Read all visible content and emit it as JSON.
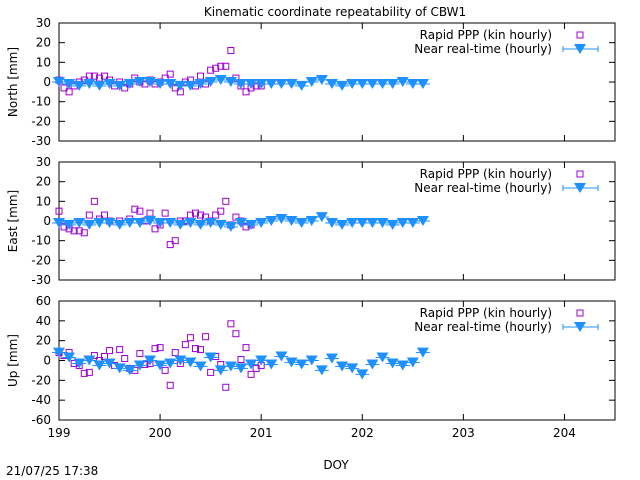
{
  "title": "Kinematic coordinate repeatability of CBW1",
  "timestamp": "21/07/25 17:38",
  "colors": {
    "rapid": "#a000d0",
    "nrt": "#1e90ff"
  },
  "chart_data": [
    {
      "type": "scatter",
      "title": "Kinematic coordinate repeatability of CBW1",
      "xlabel": "DOY",
      "ylabel": "North [mm]",
      "xlim": [
        199,
        204.5
      ],
      "ylim": [
        -30,
        30
      ],
      "yticks": [
        -30,
        -20,
        -10,
        0,
        10,
        20,
        30
      ],
      "xticks": [
        199,
        200,
        201,
        202,
        203,
        204
      ],
      "legend_position": "top-right",
      "series": [
        {
          "name": "Rapid PPP (kin hourly)",
          "marker": "open-square",
          "x": [
            199.0,
            199.05,
            199.1,
            199.15,
            199.2,
            199.25,
            199.3,
            199.35,
            199.4,
            199.45,
            199.5,
            199.55,
            199.6,
            199.65,
            199.7,
            199.75,
            199.8,
            199.85,
            199.9,
            199.95,
            200.0,
            200.05,
            200.1,
            200.15,
            200.2,
            200.25,
            200.3,
            200.35,
            200.4,
            200.45,
            200.5,
            200.55,
            200.6,
            200.65,
            200.7,
            200.75,
            200.8,
            200.85,
            200.9,
            200.95,
            201.0
          ],
          "y": [
            1,
            -3,
            -5,
            -2,
            0,
            1,
            3,
            3,
            2,
            3,
            1,
            -2,
            0,
            -3,
            -1,
            2,
            0,
            -1,
            1,
            -1,
            0,
            2,
            4,
            -3,
            -5,
            0,
            1,
            -2,
            3,
            -1,
            6,
            7,
            8,
            8,
            16,
            2,
            -2,
            -5,
            -3,
            -2,
            -2
          ]
        },
        {
          "name": "Near real-time (hourly)",
          "marker": "filled-triangle-down",
          "x": [
            199.0,
            199.1,
            199.2,
            199.3,
            199.4,
            199.5,
            199.6,
            199.7,
            199.8,
            199.9,
            200.0,
            200.1,
            200.2,
            200.3,
            200.4,
            200.5,
            200.6,
            200.7,
            200.8,
            200.9,
            201.0,
            201.1,
            201.2,
            201.3,
            201.4,
            201.5,
            201.6,
            201.7,
            201.8,
            201.9,
            202.0,
            202.1,
            202.2,
            202.3,
            202.4,
            202.5,
            202.6
          ],
          "y": [
            0,
            -1,
            -2,
            -1,
            -2,
            -1,
            -2,
            -1,
            0,
            0,
            -1,
            -1,
            -2,
            -2,
            -1,
            0,
            1,
            0,
            -1,
            -1,
            -1,
            -1,
            -1,
            -1,
            -2,
            0,
            1,
            -1,
            -2,
            -1,
            -1,
            -1,
            -1,
            -1,
            0,
            -1,
            -1
          ]
        }
      ]
    },
    {
      "type": "scatter",
      "xlabel": "DOY",
      "ylabel": "East [mm]",
      "xlim": [
        199,
        204.5
      ],
      "ylim": [
        -30,
        30
      ],
      "yticks": [
        -30,
        -20,
        -10,
        0,
        10,
        20,
        30
      ],
      "xticks": [
        199,
        200,
        201,
        202,
        203,
        204
      ],
      "legend_position": "top-right",
      "series": [
        {
          "name": "Rapid PPP (kin hourly)",
          "marker": "open-square",
          "x": [
            199.0,
            199.05,
            199.1,
            199.15,
            199.2,
            199.25,
            199.3,
            199.35,
            199.4,
            199.45,
            199.5,
            199.6,
            199.7,
            199.75,
            199.8,
            199.85,
            199.9,
            199.95,
            200.0,
            200.05,
            200.1,
            200.15,
            200.2,
            200.25,
            200.3,
            200.35,
            200.4,
            200.45,
            200.5,
            200.55,
            200.6,
            200.65,
            200.7,
            200.75,
            200.8,
            200.85,
            200.9
          ],
          "y": [
            5,
            -3,
            -4,
            -5,
            -5,
            -6,
            3,
            10,
            1,
            3,
            0,
            0,
            1,
            6,
            5,
            0,
            4,
            -4,
            -2,
            4,
            -12,
            -10,
            0,
            0,
            3,
            4,
            3,
            2,
            0,
            3,
            5,
            10,
            -2,
            2,
            0,
            -3,
            -2
          ]
        },
        {
          "name": "Near real-time (hourly)",
          "marker": "filled-triangle-down",
          "x": [
            199.0,
            199.1,
            199.2,
            199.3,
            199.4,
            199.5,
            199.6,
            199.7,
            199.8,
            199.9,
            200.0,
            200.1,
            200.2,
            200.3,
            200.4,
            200.5,
            200.6,
            200.7,
            200.8,
            200.9,
            201.0,
            201.1,
            201.2,
            201.3,
            201.4,
            201.5,
            201.6,
            201.7,
            201.8,
            201.9,
            202.0,
            202.1,
            202.2,
            202.3,
            202.4,
            202.5,
            202.6
          ],
          "y": [
            -1,
            -2,
            -1,
            -2,
            -1,
            -1,
            -2,
            -1,
            -1,
            0,
            -1,
            -1,
            -2,
            -1,
            -2,
            -1,
            -2,
            -3,
            -1,
            -2,
            -1,
            0,
            1,
            0,
            -1,
            0,
            2,
            -1,
            -2,
            -1,
            -1,
            -1,
            -1,
            -2,
            -1,
            -1,
            0
          ]
        }
      ]
    },
    {
      "type": "scatter",
      "xlabel": "DOY",
      "ylabel": "Up [mm]",
      "xlim": [
        199,
        204.5
      ],
      "ylim": [
        -60,
        60
      ],
      "yticks": [
        -60,
        -40,
        -20,
        0,
        20,
        40,
        60
      ],
      "xticks": [
        199,
        200,
        201,
        202,
        203,
        204
      ],
      "legend_position": "top-right",
      "series": [
        {
          "name": "Rapid PPP (kin hourly)",
          "marker": "open-square",
          "x": [
            199.0,
            199.05,
            199.1,
            199.15,
            199.2,
            199.25,
            199.3,
            199.35,
            199.4,
            199.45,
            199.5,
            199.55,
            199.6,
            199.65,
            199.7,
            199.75,
            199.8,
            199.85,
            199.9,
            199.95,
            200.0,
            200.05,
            200.1,
            200.15,
            200.2,
            200.25,
            200.3,
            200.35,
            200.4,
            200.45,
            200.5,
            200.55,
            200.6,
            200.65,
            200.7,
            200.75,
            200.8,
            200.85,
            200.9,
            200.95,
            201.0
          ],
          "y": [
            8,
            5,
            8,
            -3,
            -5,
            -13,
            -12,
            5,
            0,
            4,
            10,
            -5,
            11,
            2,
            -8,
            -10,
            7,
            -4,
            -3,
            12,
            13,
            -10,
            -25,
            8,
            -3,
            16,
            23,
            12,
            11,
            24,
            -12,
            4,
            -4,
            -27,
            37,
            27,
            1,
            13,
            -14,
            -8,
            -5
          ]
        },
        {
          "name": "Near real-time (hourly)",
          "marker": "filled-triangle-down",
          "x": [
            199.0,
            199.1,
            199.2,
            199.3,
            199.4,
            199.5,
            199.6,
            199.7,
            199.8,
            199.9,
            200.0,
            200.1,
            200.2,
            200.3,
            200.4,
            200.5,
            200.6,
            200.7,
            200.8,
            200.9,
            201.0,
            201.1,
            201.2,
            201.3,
            201.4,
            201.5,
            201.6,
            201.7,
            201.8,
            201.9,
            202.0,
            202.1,
            202.2,
            202.3,
            202.4,
            202.5,
            202.6
          ],
          "y": [
            8,
            3,
            -3,
            0,
            -5,
            -3,
            -8,
            -10,
            -5,
            0,
            -5,
            -3,
            0,
            -2,
            -6,
            3,
            -10,
            -6,
            -8,
            -4,
            0,
            -4,
            4,
            -2,
            -4,
            0,
            -10,
            2,
            -6,
            -8,
            -14,
            -4,
            3,
            -3,
            -5,
            -2,
            8
          ]
        }
      ]
    }
  ]
}
